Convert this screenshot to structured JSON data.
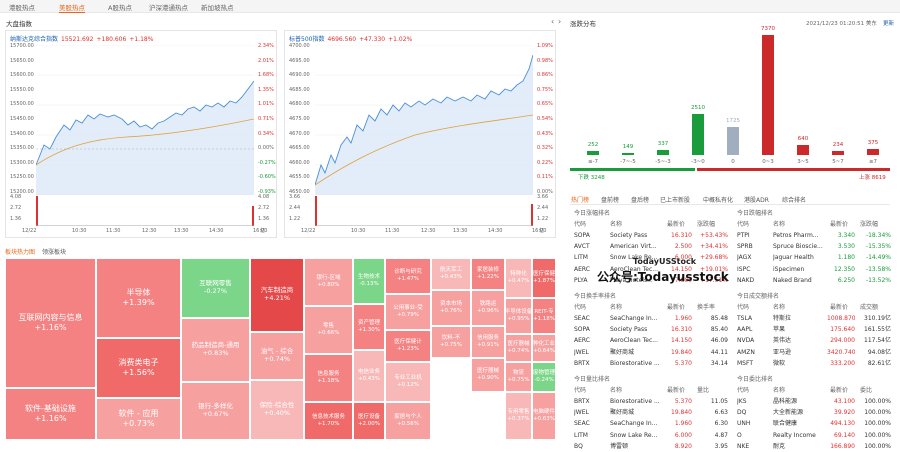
{
  "top_tabs": [
    "港股热点",
    "美股热点",
    "A股热点",
    "沪深港通热点",
    "新加坡热点"
  ],
  "market": {
    "title": "大盘指数",
    "nasdaq": {
      "name": "纳斯达克综合指数",
      "value": "15521.692",
      "change": "+180.606",
      "pct": "+1.18%",
      "left_ticks": [
        "15700.00",
        "15650.00",
        "15600.00",
        "15550.00",
        "15500.00",
        "15450.00",
        "15400.00",
        "15350.00",
        "15300.00",
        "15250.00",
        "15200.00"
      ],
      "right_ticks": [
        "2.34%",
        "2.01%",
        "1.68%",
        "1.35%",
        "1.01%",
        "0.71%",
        "0.34%",
        "0.00%",
        "-0.27%",
        "-0.60%",
        "-0.93%"
      ],
      "vol_ticks": [
        "4.08",
        "2.72",
        "1.36",
        "亿"
      ],
      "times": [
        "12/22",
        "10:30",
        "11:30",
        "12:30",
        "13:30",
        "14:30",
        "16:00"
      ]
    },
    "sp500": {
      "name": "标普500指数",
      "value": "4696.560",
      "change": "+47.330",
      "pct": "+1.02%",
      "left_ticks": [
        "4700.00",
        "4695.00",
        "4690.00",
        "4685.00",
        "4680.00",
        "4675.00",
        "4670.00",
        "4665.00",
        "4660.00",
        "4655.00",
        "4650.00"
      ],
      "right_ticks": [
        "1.09%",
        "0.98%",
        "0.86%",
        "0.75%",
        "0.65%",
        "0.54%",
        "0.43%",
        "0.32%",
        "0.22%",
        "0.11%",
        "0.00%"
      ],
      "vol_ticks": [
        "3.66",
        "2.44",
        "1.22",
        "亿"
      ],
      "times": [
        "12/22",
        "10:30",
        "11:30",
        "12:30",
        "13:30",
        "14:30",
        "16:00"
      ]
    }
  },
  "heatmap": {
    "tabs": [
      "板块热力图",
      "领涨板块"
    ],
    "cells": [
      {
        "name": "互联网内容与信息",
        "pct": "+1.16%"
      },
      {
        "name": "软件-基础设施",
        "pct": "+1.16%"
      },
      {
        "name": "半导体",
        "pct": "+1.39%"
      },
      {
        "name": "消费类电子",
        "pct": "+1.56%"
      },
      {
        "name": "软件 - 应用",
        "pct": "+0.73%"
      },
      {
        "name": "互联网零售",
        "pct": "-0.27%"
      },
      {
        "name": "药品制造商-通用",
        "pct": "+0.83%"
      },
      {
        "name": "银行-多样化",
        "pct": "+0.67%"
      },
      {
        "name": "汽车制造商",
        "pct": "+4.21%"
      },
      {
        "name": "油气 - 综合",
        "pct": "+0.74%"
      },
      {
        "name": "保险-综合性",
        "pct": "+0.40%"
      },
      {
        "name": "银行-区域",
        "pct": "+0.80%"
      },
      {
        "name": "零售",
        "pct": "+0.66%"
      },
      {
        "name": "信息服务",
        "pct": "+1.18%"
      },
      {
        "name": "信息技术服务",
        "pct": "+1.70%"
      },
      {
        "name": "生物技术",
        "pct": "-0.13%"
      },
      {
        "name": "资产管理",
        "pct": "+1.30%"
      },
      {
        "name": "电信业务",
        "pct": "+0.43%"
      },
      {
        "name": "医疗设备",
        "pct": "+2.00%"
      },
      {
        "name": "诊断与研究",
        "pct": "+1.47%"
      },
      {
        "name": "公用事业-受",
        "pct": "+0.79%"
      },
      {
        "name": "医疗保健计",
        "pct": "+1.23%"
      },
      {
        "name": "专业工业机",
        "pct": "+0.12%"
      },
      {
        "name": "家居与个人",
        "pct": "+0.56%"
      },
      {
        "name": "航天军工",
        "pct": "+0.43%"
      },
      {
        "name": "资本市场",
        "pct": "+0.76%"
      },
      {
        "name": "饮料-不",
        "pct": "+0.75%"
      },
      {
        "name": "家居装修",
        "pct": "+1.22%"
      },
      {
        "name": "铁路运",
        "pct": "+0.96%"
      },
      {
        "name": "信用服务",
        "pct": "+0.91%"
      },
      {
        "name": "医疗器械",
        "pct": "+0.90%"
      },
      {
        "name": "特种化",
        "pct": "+0.47%"
      },
      {
        "name": "半导体设备",
        "pct": "+0.95%"
      },
      {
        "name": "医疗器械",
        "pct": "+0.74%"
      },
      {
        "name": "物流",
        "pct": "+0.75%"
      },
      {
        "name": "专用零售",
        "pct": "+0.37%"
      },
      {
        "name": "医疗保健",
        "pct": "+1.87%"
      },
      {
        "name": "REIT-专",
        "pct": "+1.18%"
      },
      {
        "name": "特种化工业机",
        "pct": "+0.64%"
      },
      {
        "name": "废物管理",
        "pct": "-0.24%"
      },
      {
        "name": "电脑硬件",
        "pct": "+0.63%"
      }
    ]
  },
  "distribution": {
    "title": "涨跌分布",
    "timestamp": "2021/12/23 01:20:51 美东",
    "refresh": "更新",
    "bars": [
      {
        "label": "≤-7",
        "value": 252
      },
      {
        "label": "-7~-5",
        "value": 149
      },
      {
        "label": "-5~-3",
        "value": 337
      },
      {
        "label": "-3~0",
        "value": 2510
      },
      {
        "label": "0",
        "value": 1725
      },
      {
        "label": "0~3",
        "value": 7370
      },
      {
        "label": "3~5",
        "value": 640
      },
      {
        "label": "5~7",
        "value": 234
      },
      {
        "label": "≥7",
        "value": 375
      }
    ],
    "down_label": "下跌 3248",
    "up_label": "上涨 8619",
    "colors": {
      "down": "#1a9b3c",
      "flat": "#a0aec0",
      "up": "#cc2a2a"
    }
  },
  "ranks": {
    "tabs": [
      "热门榜",
      "盘前榜",
      "盘后榜",
      "已上市新股",
      "中概私有化",
      "港股ADR",
      "综合排名"
    ],
    "gainers": {
      "title": "今日涨幅排名",
      "headers": [
        "代码",
        "名称",
        "最新价",
        "涨跌幅"
      ],
      "rows": [
        [
          "SOPA",
          "Society Pass",
          "16.310",
          "+53.43%"
        ],
        [
          "AVCT",
          "American Virt...",
          "2.500",
          "+34.41%"
        ],
        [
          "LITM",
          "Snow Lake Re...",
          "6.000",
          "+29.68%"
        ],
        [
          "AERC",
          "AeroClean Tec...",
          "14.150",
          "+19.01%"
        ],
        [
          "PLYA",
          "Playa Hotels...",
          "7.800",
          "+17.51%"
        ]
      ]
    },
    "losers": {
      "title": "今日跌幅排名",
      "headers": [
        "代码",
        "名称",
        "最新价",
        "涨跌幅"
      ],
      "rows": [
        [
          "PTPI",
          "Petros Pharm...",
          "3.340",
          "-18.34%"
        ],
        [
          "SPRB",
          "Spruce Bioscie...",
          "3.530",
          "-15.35%"
        ],
        [
          "JAGX",
          "Jaguar Health",
          "1.180",
          "-14.49%"
        ],
        [
          "ISPC",
          "iSpecimen",
          "12.350",
          "-13.58%"
        ],
        [
          "NAKD",
          "Naked Brand",
          "6.250",
          "-13.52%"
        ]
      ]
    },
    "turnover": {
      "title": "今日换手率排名",
      "headers": [
        "代码",
        "名称",
        "最新价",
        "换手率"
      ],
      "rows": [
        [
          "SEAC",
          "SeaChange In...",
          "1.960",
          "85.48"
        ],
        [
          "SOPA",
          "Society Pass",
          "16.310",
          "85.40"
        ],
        [
          "AERC",
          "AeroClean Tec...",
          "14.150",
          "46.09"
        ],
        [
          "JWEL",
          "聚好商城",
          "19.840",
          "44.11"
        ],
        [
          "BRTX",
          "Biorestorative ...",
          "5.370",
          "34.14"
        ]
      ]
    },
    "amount": {
      "title": "今日成交额排名",
      "headers": [
        "代码",
        "名称",
        "最新价",
        "成交额"
      ],
      "rows": [
        [
          "TSLA",
          "特斯拉",
          "1008.870",
          "310.19亿"
        ],
        [
          "AAPL",
          "苹果",
          "175.640",
          "161.55亿"
        ],
        [
          "NVDA",
          "英伟达",
          "294.000",
          "117.54亿"
        ],
        [
          "AMZN",
          "亚马逊",
          "3420.740",
          "94.08亿"
        ],
        [
          "MSFT",
          "微软",
          "333.200",
          "82.61亿"
        ]
      ]
    },
    "volratio": {
      "title": "今日量比排名",
      "headers": [
        "代码",
        "名称",
        "最新价",
        "量比"
      ],
      "rows": [
        [
          "BRTX",
          "Biorestorative ...",
          "5.370",
          "11.05"
        ],
        [
          "JWEL",
          "聚好商城",
          "19.840",
          "6.63"
        ],
        [
          "SEAC",
          "SeaChange In...",
          "1.960",
          "6.30"
        ],
        [
          "LITM",
          "Snow Lake Re...",
          "6.000",
          "4.87"
        ],
        [
          "BQ",
          "博雷顿",
          "8.920",
          "3.95"
        ]
      ]
    },
    "ratio": {
      "title": "今日委比排名",
      "headers": [
        "代码",
        "名称",
        "最新价",
        "委比"
      ],
      "rows": [
        [
          "JKS",
          "晶科能源",
          "43.100",
          "100.00%"
        ],
        [
          "DQ",
          "大全新能源",
          "39.920",
          "100.00%"
        ],
        [
          "UNH",
          "联合健康",
          "494.130",
          "100.00%"
        ],
        [
          "O",
          "Realty Income",
          "69.140",
          "100.00%"
        ],
        [
          "NKE",
          "耐克",
          "166.890",
          "100.00%"
        ]
      ]
    }
  },
  "watermark1": "TodayUSStock",
  "watermark2": "公众号:Todayusstock"
}
